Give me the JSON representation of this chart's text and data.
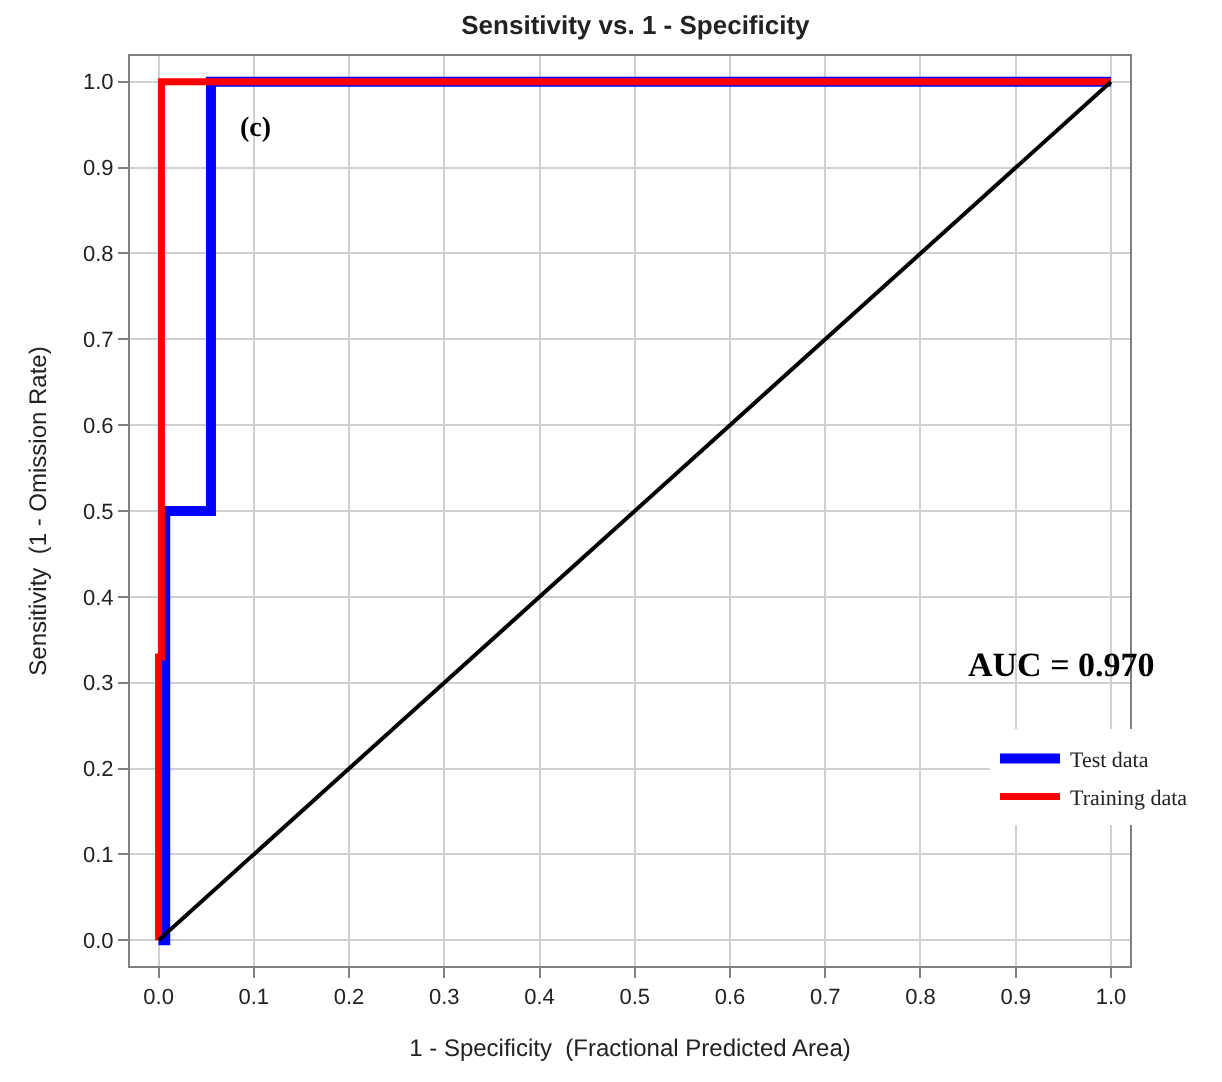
{
  "chart_data": {
    "type": "line",
    "title": "Sensitivity vs. 1 - Specificity",
    "xlabel": "1 - Specificity  (Fractional Predicted Area)",
    "ylabel": "Sensitivity  (1 - Omission Rate)",
    "series": [
      {
        "name": "Test data",
        "color": "#0000ff",
        "x": [
          0,
          0.007,
          0.007,
          0.055,
          0.055,
          1.0
        ],
        "values": [
          0,
          0,
          0.5,
          0.5,
          1.0,
          1.0
        ]
      },
      {
        "name": "Training data",
        "color": "#ff0000",
        "x": [
          0,
          0,
          0.003,
          0.003,
          1.0
        ],
        "values": [
          0,
          0.33,
          0.33,
          1.0,
          1.0
        ]
      },
      {
        "color": "#000000",
        "x": [
          0,
          1.0
        ],
        "values": [
          0,
          1.0
        ]
      }
    ],
    "annotations": [
      "(c)",
      "AUC = 0.970"
    ],
    "xlim": [
      -0.03,
      1.02
    ],
    "ylim": [
      -0.03,
      1.03
    ],
    "xticks": [
      {
        "value": 0,
        "label": "0.0"
      },
      0.1,
      0.2,
      0.3,
      0.4,
      0.5,
      0.6,
      0.7,
      0.8,
      0.9,
      {
        "value": 1,
        "label": "1.0"
      }
    ],
    "yticks": [
      {
        "value": 0,
        "label": "0.0"
      },
      0.1,
      0.2,
      0.3,
      0.4,
      0.5,
      0.6,
      0.7,
      0.8,
      0.9,
      {
        "value": 1,
        "label": "1.0"
      }
    ],
    "grid": true,
    "legend": "right",
    "marker": "none",
    "line_style": "solid"
  }
}
